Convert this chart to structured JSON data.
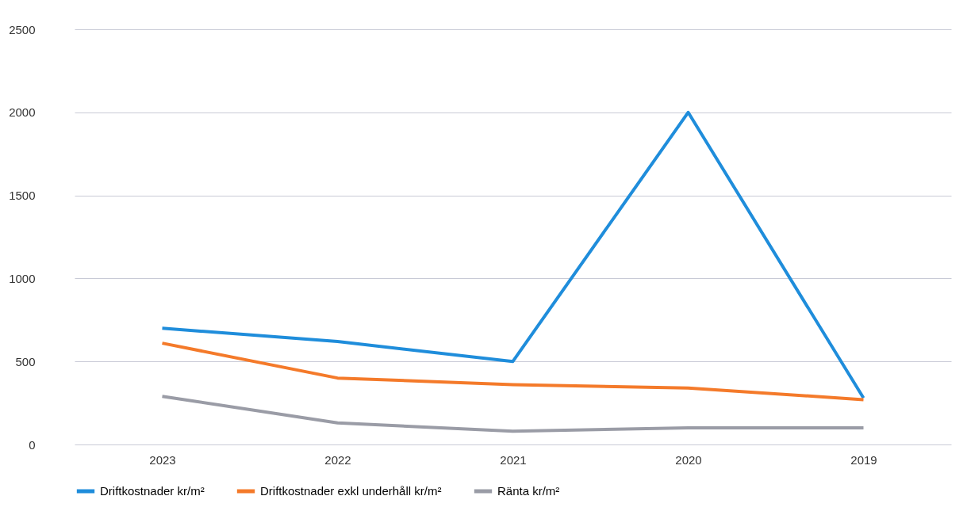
{
  "chart_data": {
    "type": "line",
    "categories": [
      "2023",
      "2022",
      "2021",
      "2020",
      "2019"
    ],
    "series": [
      {
        "name": "Driftkostnader kr/m²",
        "color": "#1f8ddb",
        "values": [
          700,
          620,
          500,
          2000,
          280
        ]
      },
      {
        "name": "Driftkostnader exkl underhåll kr/m²",
        "color": "#f47a2a",
        "values": [
          610,
          400,
          360,
          340,
          270
        ]
      },
      {
        "name": "Ränta kr/m²",
        "color": "#9a9ca6",
        "values": [
          290,
          130,
          80,
          100,
          100
        ]
      }
    ],
    "ylim": [
      0,
      2500
    ],
    "yticks": [
      0,
      500,
      1000,
      1500,
      2000,
      2500
    ],
    "grid": "y",
    "legend": "bottom",
    "marker": "none",
    "line_style": "solid"
  }
}
